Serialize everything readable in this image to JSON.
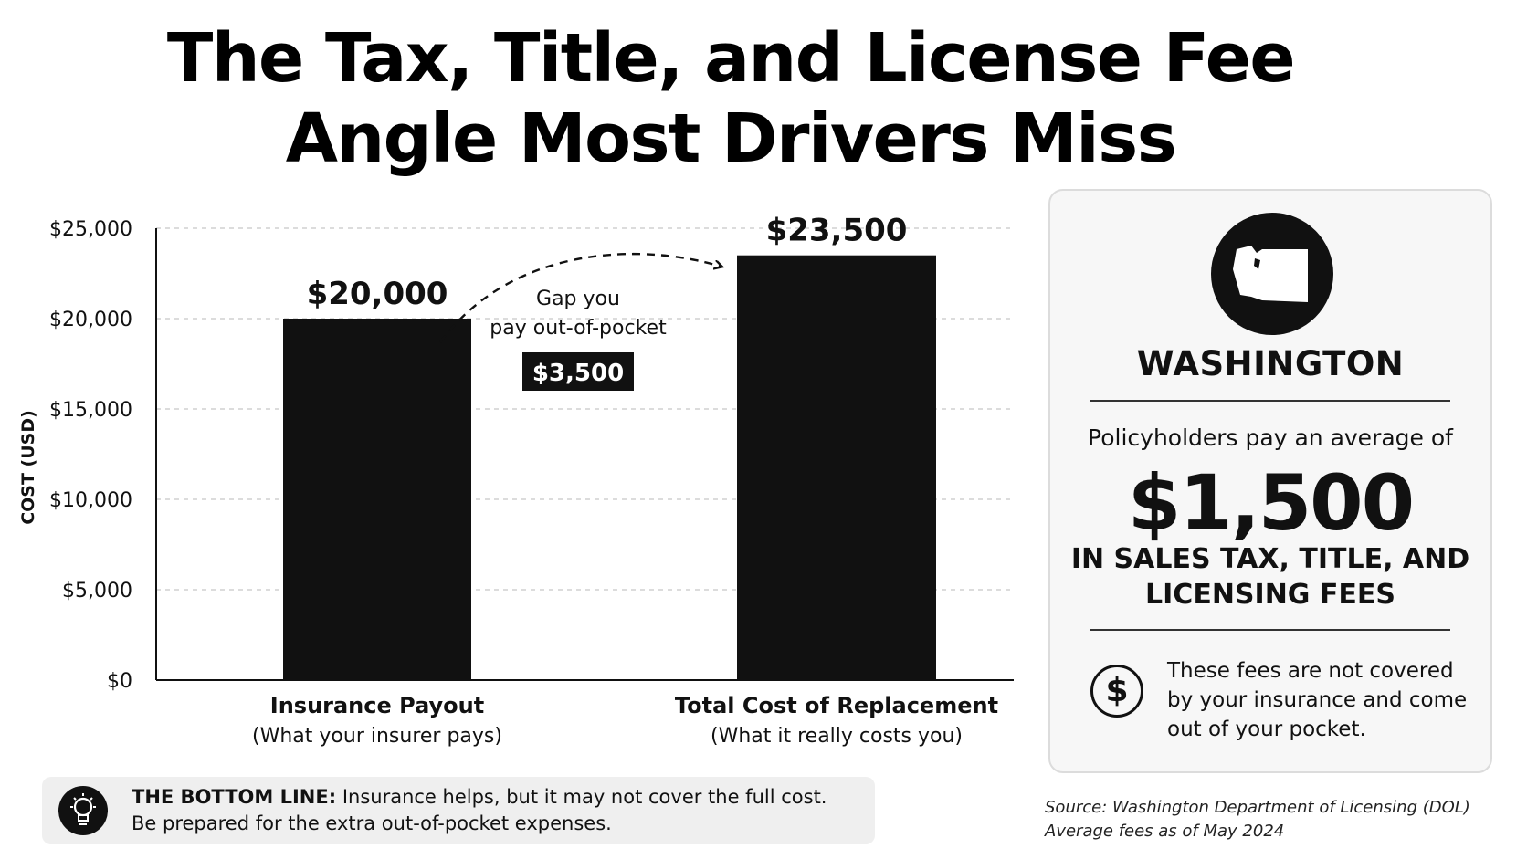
{
  "title": {
    "line1": "The Tax, Title, and License Fee",
    "line2": "Angle Most Drivers Miss"
  },
  "chart_data": {
    "type": "bar",
    "categories": [
      "Insurance Payout",
      "Total Cost of Replacement"
    ],
    "category_sublabels": [
      "(What your insurer pays)",
      "(What it really costs you)"
    ],
    "values": [
      20000,
      23500
    ],
    "value_labels": [
      "$20,000",
      "$23,500"
    ],
    "bar_color": "#111111",
    "ylabel": "COST (USD)",
    "ylim": [
      0,
      25000
    ],
    "yticks": [
      0,
      5000,
      10000,
      15000,
      20000,
      25000
    ],
    "ytick_labels": [
      "$0",
      "$5,000",
      "$10,000",
      "$15,000",
      "$20,000",
      "$25,000"
    ],
    "grid": true,
    "annotation": {
      "text_line1": "Gap you",
      "text_line2": "pay out-of-pocket",
      "value": "$3,500"
    }
  },
  "card": {
    "map_icon": "washington-state-map-icon",
    "state": "WASHINGTON",
    "average_label": "Policyholders pay an average of",
    "average_value": "$1,500",
    "average_desc_line1": "IN SALES TAX, TITLE, AND",
    "average_desc_line2": "LICENSING FEES",
    "dollar_icon_glyph": "$",
    "note_line1": "These fees are not covered",
    "note_line2": "by your insurance and come",
    "note_line3": "out of your pocket."
  },
  "bottom_line": {
    "label": "THE BOTTOM LINE:",
    "text1": "Insurance helps, but it may not cover the full cost.",
    "text2": "Be prepared for the extra out-of-pocket expenses."
  },
  "source": {
    "line1": "Source: Washington Department of Licensing (DOL)",
    "line2": "Average fees as of May 2024"
  }
}
